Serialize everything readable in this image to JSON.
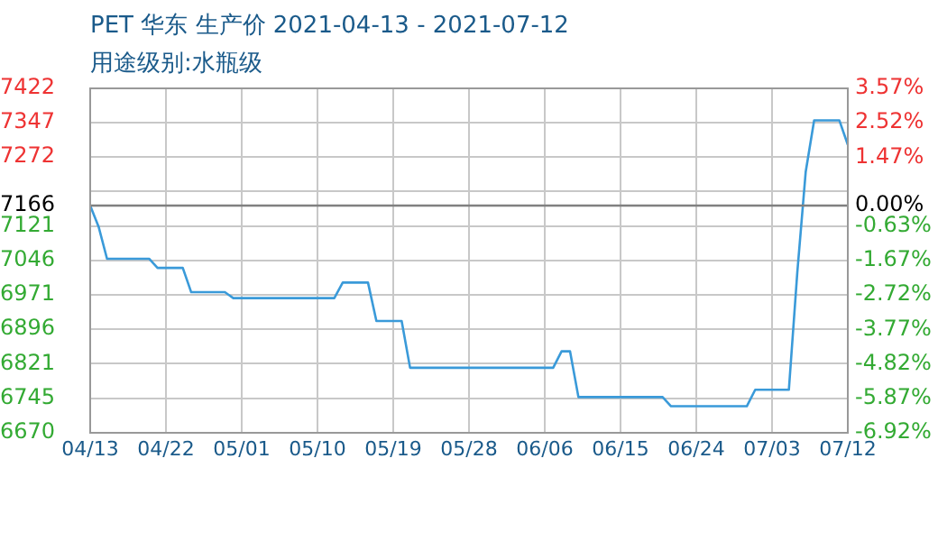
{
  "chart_data": {
    "type": "line",
    "title": "PET 华东 生产价 2021-04-13 - 2021-07-12",
    "subtitle": "用途级别:水瓶级",
    "x": [
      "2021-04-13",
      "2021-04-14",
      "2021-04-15",
      "2021-04-20",
      "2021-04-21",
      "2021-04-24",
      "2021-04-25",
      "2021-04-29",
      "2021-04-30",
      "2021-05-12",
      "2021-05-13",
      "2021-05-16",
      "2021-05-17",
      "2021-05-20",
      "2021-05-21",
      "2021-06-07",
      "2021-06-08",
      "2021-06-09",
      "2021-06-10",
      "2021-06-20",
      "2021-06-21",
      "2021-06-30",
      "2021-07-01",
      "2021-07-05",
      "2021-07-06",
      "2021-07-07",
      "2021-07-08",
      "2021-07-11",
      "2021-07-12"
    ],
    "series": [
      {
        "color": "#3a9ad9",
        "values": [
          7166,
          7120,
          7050,
          7050,
          7030,
          7030,
          6977,
          6977,
          6964,
          6964,
          6998,
          6998,
          6914,
          6914,
          6812,
          6812,
          6848,
          6848,
          6748,
          6748,
          6728,
          6728,
          6764,
          6764,
          7020,
          7240,
          7352,
          7352,
          7299
        ]
      }
    ],
    "xlim": [
      "2021-04-13",
      "2021-07-12"
    ],
    "xticks": [
      {
        "value": "2021-04-13",
        "label": "04/13"
      },
      {
        "value": "2021-04-22",
        "label": "04/22"
      },
      {
        "value": "2021-05-01",
        "label": "05/01"
      },
      {
        "value": "2021-05-10",
        "label": "05/10"
      },
      {
        "value": "2021-05-19",
        "label": "05/19"
      },
      {
        "value": "2021-05-28",
        "label": "05/28"
      },
      {
        "value": "2021-06-06",
        "label": "06/06"
      },
      {
        "value": "2021-06-15",
        "label": "06/15"
      },
      {
        "value": "2021-06-24",
        "label": "06/24"
      },
      {
        "value": "2021-07-03",
        "label": "07/03"
      },
      {
        "value": "2021-07-12",
        "label": "07/12"
      }
    ],
    "ylim": [
      6670,
      7422
    ],
    "yticks": [
      6670,
      6745,
      6821,
      6896,
      6971,
      7046,
      7121,
      7166,
      {
        "value": 7197,
        "label": null
      },
      7272,
      7347,
      7422
    ],
    "y2lim": [
      -6.92,
      3.57
    ],
    "y2ticks": [
      {
        "value": -6.92,
        "label": "-6.92%"
      },
      {
        "value": -5.87,
        "label": "-5.87%"
      },
      {
        "value": -4.82,
        "label": "-4.82%"
      },
      {
        "value": -3.77,
        "label": "-3.77%"
      },
      {
        "value": -2.72,
        "label": "-2.72%"
      },
      {
        "value": -1.67,
        "label": "-1.67%"
      },
      {
        "value": -0.63,
        "label": "-0.63%"
      },
      {
        "value": 0,
        "label": "0.00%"
      },
      {
        "value": 1.47,
        "label": "1.47%"
      },
      {
        "value": 2.52,
        "label": "2.52%"
      },
      {
        "value": 3.57,
        "label": "3.57%"
      }
    ],
    "ref_lines": [
      {
        "axis": "y",
        "value": 7166,
        "color": "#808080"
      }
    ],
    "grid": true,
    "legend": false,
    "marker": "none",
    "line_style": "solid"
  }
}
